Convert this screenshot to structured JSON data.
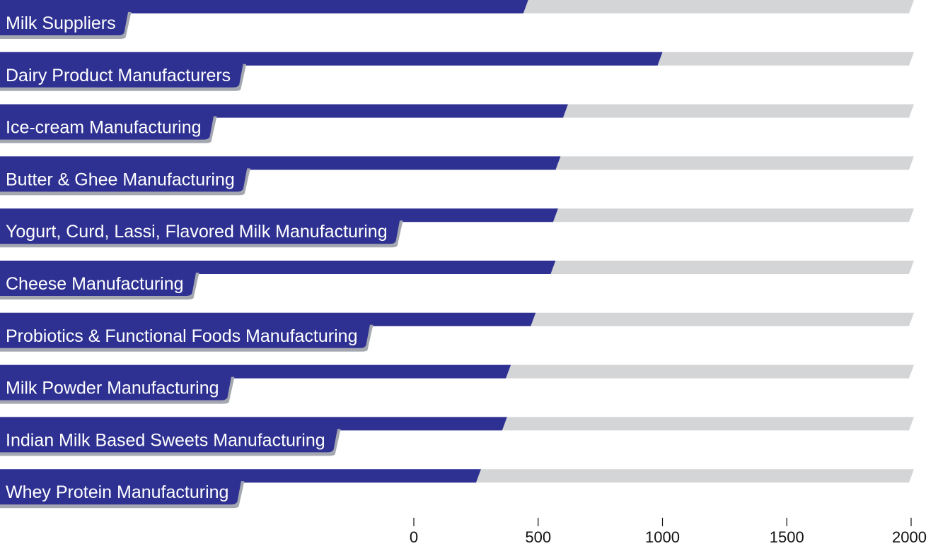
{
  "chart_data": {
    "type": "bar",
    "orientation": "horizontal",
    "categories": [
      "Milk Suppliers",
      "Dairy Product Manufacturers",
      "Ice-cream Manufacturing",
      "Butter & Ghee Manufacturing",
      "Yogurt, Curd, Lassi, Flavored Milk Manufacturing",
      "Cheese Manufacturing",
      "Probiotics & Functional Foods Manufacturing",
      "Milk Powder Manufacturing",
      "Indian Milk Based Sweets Manufacturing",
      "Whey Protein Manufacturing"
    ],
    "values": [
      460,
      1000,
      620,
      590,
      580,
      570,
      490,
      390,
      375,
      270
    ],
    "xlim": [
      0,
      2000
    ],
    "xticks": [
      0,
      500,
      1000,
      1500,
      2000
    ],
    "xtick_labels": [
      "0",
      "500",
      "1000",
      "1500",
      "2000"
    ],
    "title": "",
    "xlabel": "",
    "ylabel": "",
    "grid": false,
    "legend": "none",
    "colors": {
      "bar": "#2e3192",
      "track": "#d4d5d7",
      "label_tab": "#2e3192",
      "label_shadow": "#a4a7b0",
      "label_text": "#ffffff",
      "tick": "#111111"
    }
  }
}
